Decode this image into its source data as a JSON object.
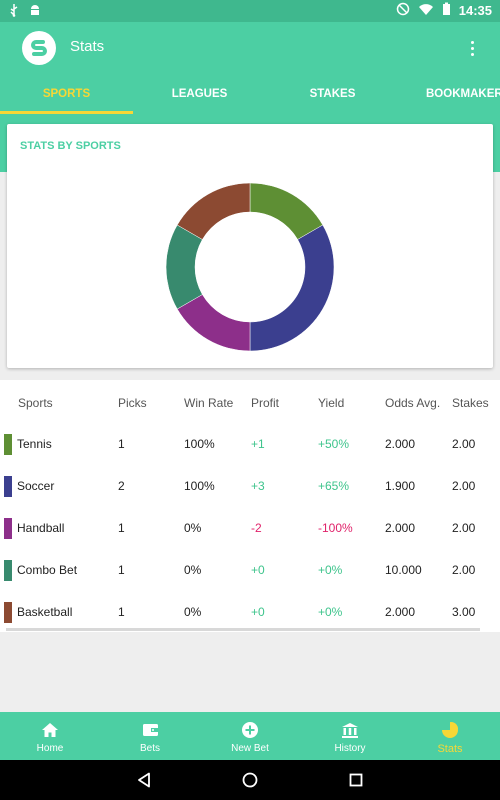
{
  "status": {
    "time": "14:35"
  },
  "appbar": {
    "title": "Stats"
  },
  "tabs": [
    {
      "label": "SPORTS",
      "active": true
    },
    {
      "label": "LEAGUES",
      "active": false
    },
    {
      "label": "STAKES",
      "active": false
    },
    {
      "label": "BOOKMAKERS",
      "active": false
    }
  ],
  "card": {
    "title": "STATS BY SPORTS"
  },
  "chart_data": {
    "type": "pie",
    "style": "donut",
    "labels": [
      "Tennis",
      "Soccer",
      "Handball",
      "Combo Bet",
      "Basketball"
    ],
    "values": [
      1,
      2,
      1,
      1,
      1
    ],
    "colors": [
      "#5e8f34",
      "#3b3f8f",
      "#8d2f8a",
      "#388a6e",
      "#8c4a32"
    ]
  },
  "table": {
    "headers": [
      "Sports",
      "Picks",
      "Win Rate",
      "Profit",
      "Yield",
      "Odds Avg.",
      "Stakes"
    ],
    "rows": [
      {
        "sport": "Tennis",
        "picks": "1",
        "win_rate": "100%",
        "profit": "+1",
        "yield": "+50%",
        "odds": "2.000",
        "stakes": "2.00",
        "color": "#5e8f34",
        "sign": "pos"
      },
      {
        "sport": "Soccer",
        "picks": "2",
        "win_rate": "100%",
        "profit": "+3",
        "yield": "+65%",
        "odds": "1.900",
        "stakes": "2.00",
        "color": "#3b3f8f",
        "sign": "pos"
      },
      {
        "sport": "Handball",
        "picks": "1",
        "win_rate": "0%",
        "profit": "-2",
        "yield": "-100%",
        "odds": "2.000",
        "stakes": "2.00",
        "color": "#8d2f8a",
        "sign": "neg"
      },
      {
        "sport": "Combo Bet",
        "picks": "1",
        "win_rate": "0%",
        "profit": "+0",
        "yield": "+0%",
        "odds": "10.000",
        "stakes": "2.00",
        "color": "#388a6e",
        "sign": "pos"
      },
      {
        "sport": "Basketball",
        "picks": "1",
        "win_rate": "0%",
        "profit": "+0",
        "yield": "+0%",
        "odds": "2.000",
        "stakes": "3.00",
        "color": "#8c4a32",
        "sign": "pos"
      }
    ]
  },
  "bottomnav": [
    {
      "label": "Home",
      "icon": "home-icon",
      "active": false
    },
    {
      "label": "Bets",
      "icon": "wallet-icon",
      "active": false
    },
    {
      "label": "New Bet",
      "icon": "add-circle-icon",
      "active": false
    },
    {
      "label": "History",
      "icon": "bank-icon",
      "active": false
    },
    {
      "label": "Stats",
      "icon": "pie-chart-icon",
      "active": true
    }
  ],
  "colors": {
    "primary": "#4ccfa3",
    "accent": "#f7d736",
    "positive": "#3ec48c",
    "negative": "#e0226a"
  }
}
